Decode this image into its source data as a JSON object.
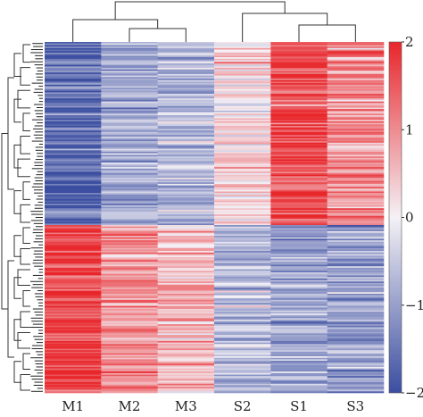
{
  "chart_data": {
    "type": "heatmap",
    "title": "",
    "columns": [
      "M1",
      "M2",
      "M3",
      "S2",
      "S1",
      "S3"
    ],
    "colorbar": {
      "min": -2,
      "max": 2,
      "ticks": [
        "2",
        "1",
        "0",
        "−1",
        "−2"
      ]
    },
    "colors": {
      "low": "#3b4ea0",
      "mid": "#f4f1f6",
      "high": "#e8262b"
    },
    "column_dendrogram": "M1 joins (M2,M3); S2 joins (S1,S3); two groups joined at top",
    "row_groups": [
      {
        "name": "upper cluster",
        "share": 0.52,
        "profile": [
          -1.7,
          -0.9,
          -0.7,
          0.3,
          1.6,
          1.0
        ]
      },
      {
        "name": "lower cluster",
        "share": 0.48,
        "profile": [
          1.7,
          0.9,
          0.6,
          -0.7,
          -0.9,
          -1.0
        ]
      }
    ],
    "row_count": 230
  }
}
